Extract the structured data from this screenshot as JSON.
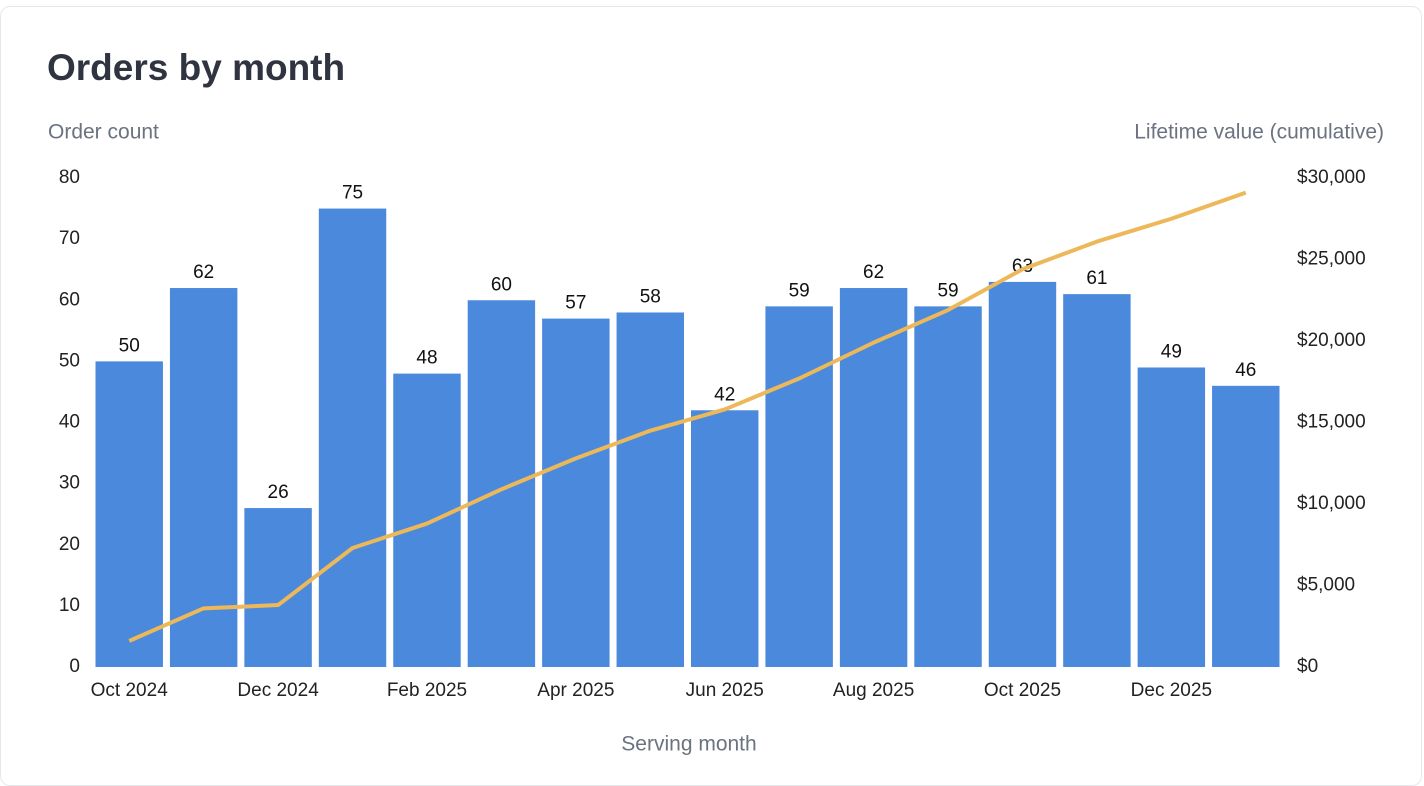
{
  "chart_data": {
    "type": "bar",
    "title": "Orders by month",
    "y_label": "Order count",
    "y2_label": "Lifetime value (cumulative)",
    "x_label": "Serving month",
    "categories": [
      "Oct 2024",
      null,
      "Dec 2024",
      null,
      "Feb 2025",
      null,
      "Apr 2025",
      null,
      "Jun 2025",
      null,
      "Aug 2025",
      null,
      "Oct 2025",
      null,
      "Dec 2025",
      null
    ],
    "series": [
      {
        "type": "bar",
        "color": "#4a89dc",
        "values": [
          50,
          62,
          26,
          75,
          48,
          60,
          57,
          58,
          42,
          59,
          62,
          59,
          63,
          61,
          49,
          46
        ]
      },
      {
        "type": "line",
        "axis": "y2",
        "color": "#ecb85a",
        "values": [
          1600,
          3600,
          3800,
          7300,
          8800,
          10900,
          12800,
          14500,
          15800,
          17700,
          19900,
          21900,
          24400,
          26100,
          27500,
          29100
        ]
      }
    ],
    "ylim": [
      0,
      80
    ],
    "yticks": [
      0,
      10,
      20,
      30,
      40,
      50,
      60,
      70,
      80
    ],
    "y2lim": [
      0,
      30000
    ],
    "y2ticks": [
      {
        "value": 0,
        "label": "$0"
      },
      {
        "value": 5000,
        "label": "$5,000"
      },
      {
        "value": 10000,
        "label": "$10,000"
      },
      {
        "value": 15000,
        "label": "$15,000"
      },
      {
        "value": 20000,
        "label": "$20,000"
      },
      {
        "value": 25000,
        "label": "$25,000"
      },
      {
        "value": 30000,
        "label": "$30,000"
      }
    ],
    "grid": false
  }
}
